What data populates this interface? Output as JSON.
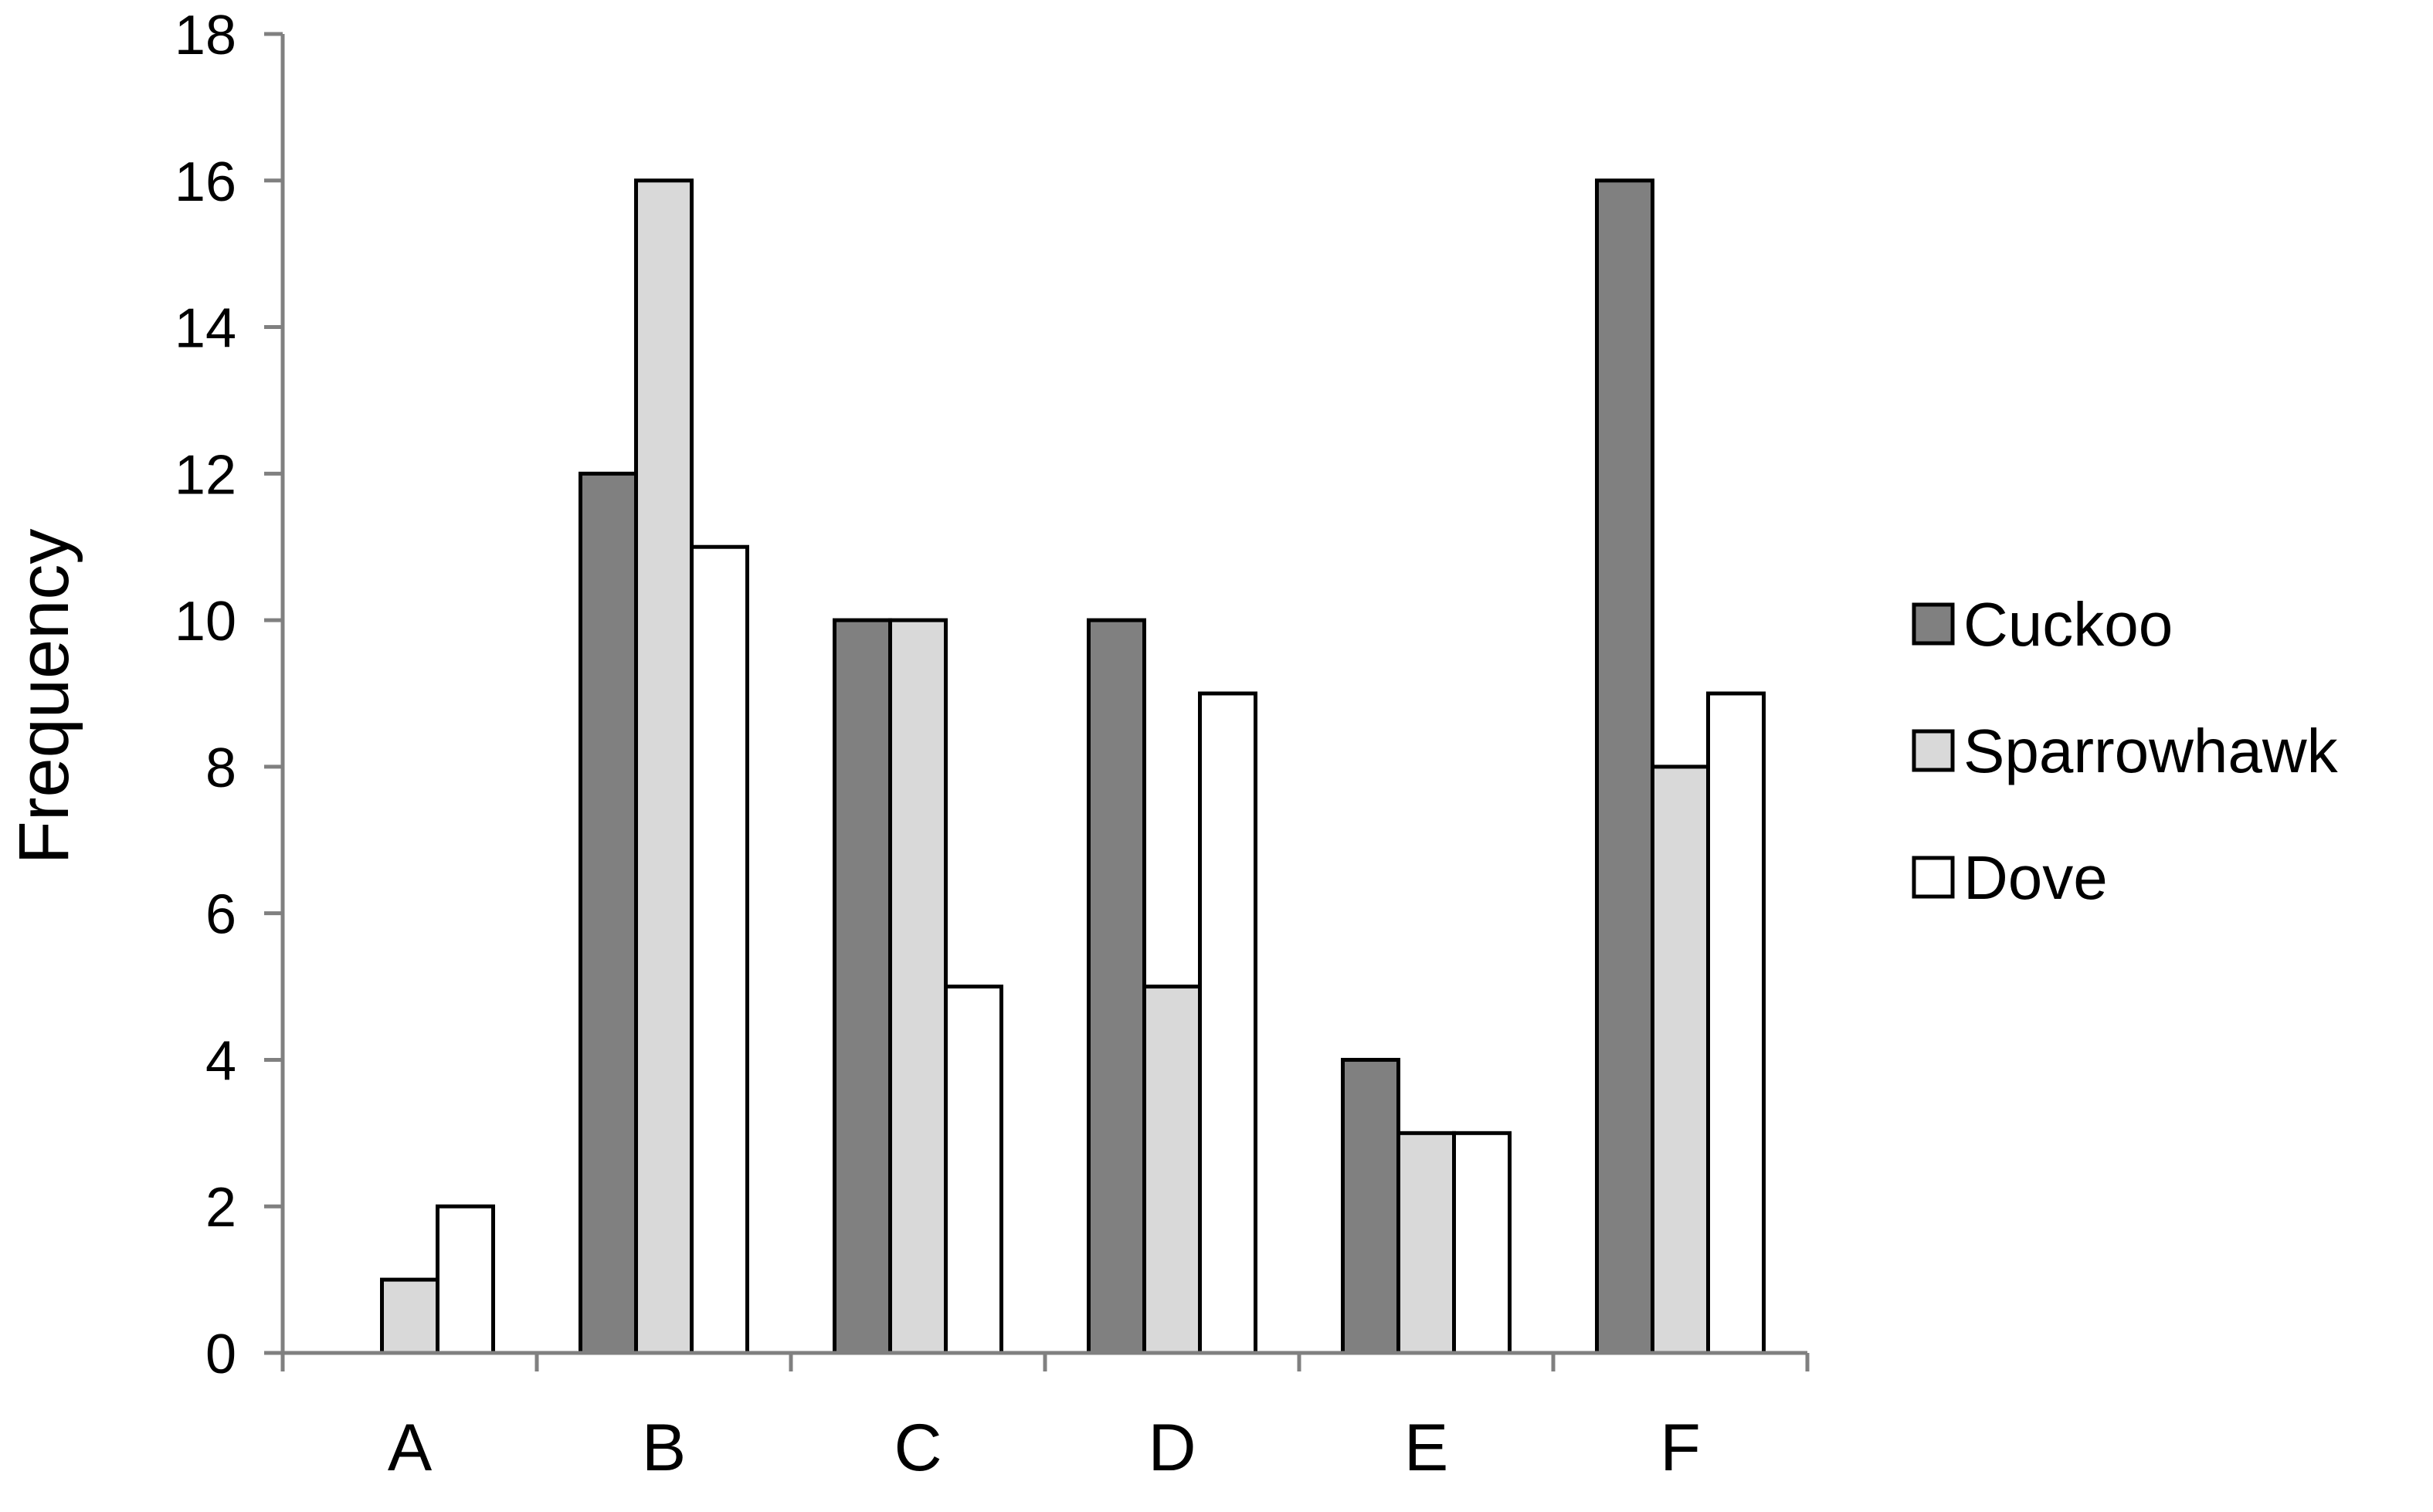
{
  "chart_data": {
    "type": "bar",
    "categories": [
      "A",
      "B",
      "C",
      "D",
      "E",
      "F"
    ],
    "series": [
      {
        "name": "Cuckoo",
        "values": [
          0,
          12,
          10,
          10,
          4,
          16
        ],
        "color": "#808080"
      },
      {
        "name": "Sparrowhawk",
        "values": [
          1,
          16,
          10,
          5,
          3,
          8
        ],
        "color": "#d9d9d9"
      },
      {
        "name": "Dove",
        "values": [
          2,
          11,
          5,
          9,
          3,
          9
        ],
        "color": "#ffffff"
      }
    ],
    "title": "",
    "xlabel": "",
    "ylabel": "Frequency",
    "ylim": [
      0,
      18
    ],
    "yticks": [
      0,
      2,
      4,
      6,
      8,
      10,
      12,
      14,
      16,
      18
    ],
    "grid": false,
    "legend_position": "right"
  }
}
